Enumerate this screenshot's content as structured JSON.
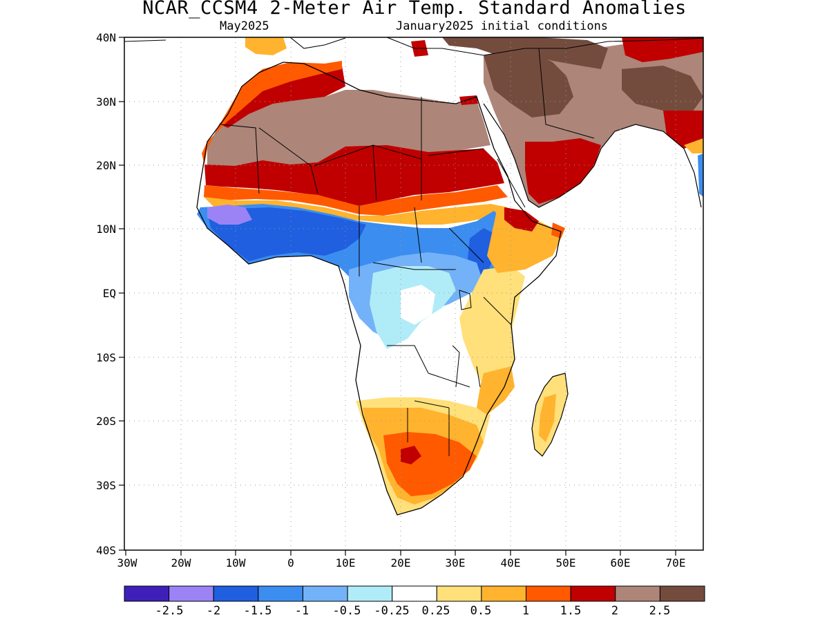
{
  "title": "NCAR_CCSM4 2-Meter Air Temp. Standard Anomalies",
  "subtitle_left": "May2025",
  "subtitle_right": "January2025 initial conditions",
  "axes": {
    "lat_labels": [
      "40N",
      "30N",
      "20N",
      "10N",
      "EQ",
      "10S",
      "20S",
      "30S",
      "40S"
    ],
    "lon_labels": [
      "30W",
      "20W",
      "10W",
      "0",
      "10E",
      "20E",
      "30E",
      "40E",
      "50E",
      "60E",
      "70E"
    ],
    "lat_range": [
      -40,
      40
    ],
    "lon_range": [
      -30,
      75
    ],
    "grid": true,
    "grid_style": "dotted"
  },
  "colorbar": {
    "colors": [
      "#3e20b8",
      "#9b83f5",
      "#1f5fe0",
      "#3b8df0",
      "#73b2f8",
      "#b0ecf8",
      "#ffffff",
      "#ffe07a",
      "#ffb32e",
      "#ff5a00",
      "#c00000",
      "#ad8579",
      "#744c3e"
    ],
    "labels": [
      "-2.5",
      "-2",
      "-1.5",
      "-1",
      "-0.5",
      "-0.25",
      "0.25",
      "0.5",
      "1",
      "1.5",
      "2",
      "2.5"
    ]
  }
}
